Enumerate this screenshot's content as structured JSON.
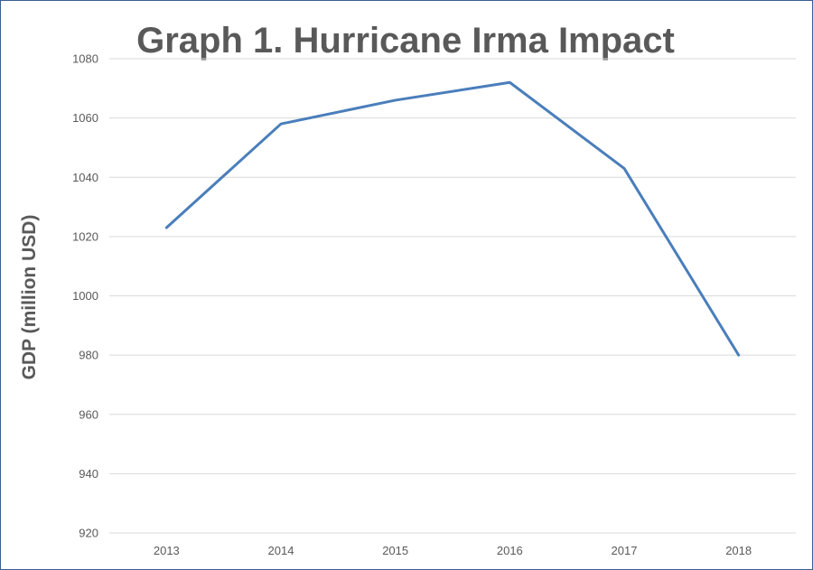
{
  "chart_data": {
    "type": "line",
    "title": "Graph 1. Hurricane Irma Impact",
    "xlabel": "",
    "ylabel": "GDP (million USD)",
    "categories": [
      "2013",
      "2014",
      "2015",
      "2016",
      "2017",
      "2018"
    ],
    "series": [
      {
        "values": [
          1023,
          1058,
          1066,
          1072,
          1043,
          980
        ]
      }
    ],
    "ylim": [
      920,
      1080
    ],
    "yticks": [
      920,
      940,
      960,
      980,
      1000,
      1020,
      1040,
      1060,
      1080
    ],
    "grid": true,
    "legend": "none",
    "line_color": "#4a7ebb"
  }
}
